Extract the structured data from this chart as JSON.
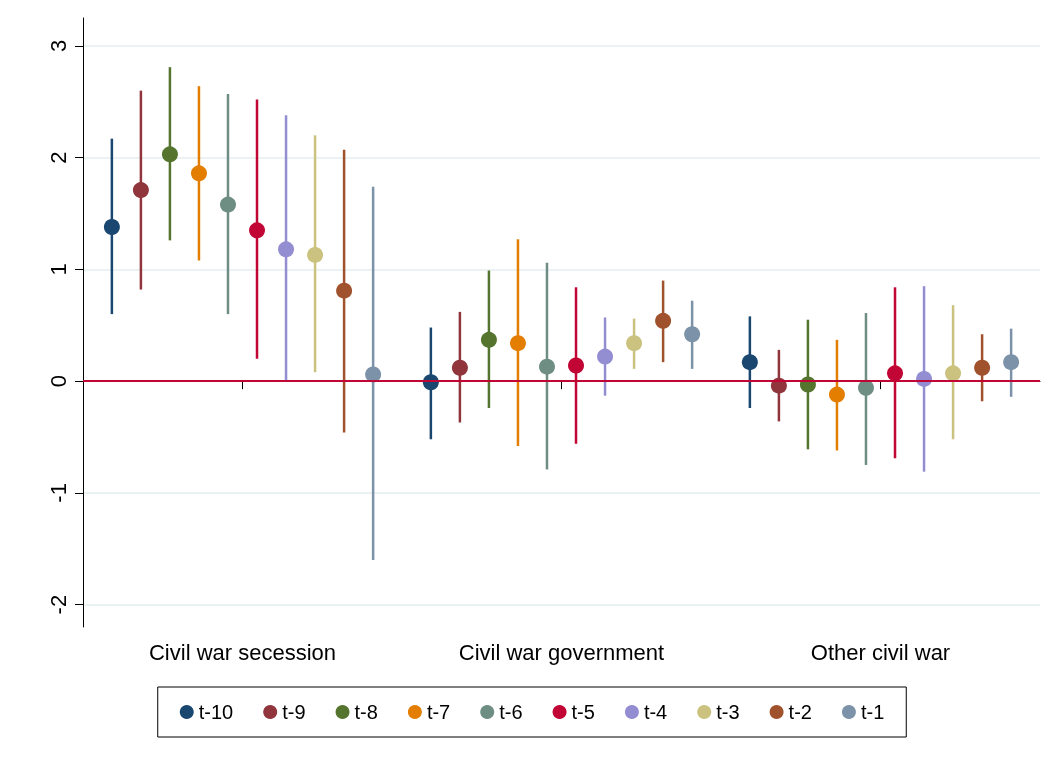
{
  "chart_data": {
    "type": "scatter",
    "categories": [
      "Civil war secession",
      "Civil war government",
      "Other civil war"
    ],
    "ylim": [
      -2.2,
      3.25
    ],
    "yticks": [
      -2,
      -1,
      0,
      1,
      2,
      3
    ],
    "grid": "y",
    "legend": "bottom",
    "marker": "circle",
    "ref_lines": [
      {
        "axis": "y",
        "value": 0,
        "color": "#c10534"
      }
    ],
    "series": [
      {
        "name": "t-10",
        "color": "#1a476f",
        "values": [
          1.38,
          -0.01,
          0.17
        ],
        "errors": [
          [
            0.6,
            2.17
          ],
          [
            -0.52,
            0.48
          ],
          [
            -0.24,
            0.58
          ]
        ]
      },
      {
        "name": "t-9",
        "color": "#90353b",
        "values": [
          1.71,
          0.12,
          -0.04
        ],
        "errors": [
          [
            0.82,
            2.6
          ],
          [
            -0.37,
            0.62
          ],
          [
            -0.36,
            0.28
          ]
        ]
      },
      {
        "name": "t-8",
        "color": "#55752f",
        "values": [
          2.03,
          0.37,
          -0.03
        ],
        "errors": [
          [
            1.26,
            2.81
          ],
          [
            -0.24,
            0.99
          ],
          [
            -0.61,
            0.55
          ]
        ]
      },
      {
        "name": "t-7",
        "color": "#e37e00",
        "values": [
          1.86,
          0.34,
          -0.12
        ],
        "errors": [
          [
            1.08,
            2.64
          ],
          [
            -0.58,
            1.27
          ],
          [
            -0.62,
            0.37
          ]
        ]
      },
      {
        "name": "t-6",
        "color": "#6e8e84",
        "values": [
          1.58,
          0.13,
          -0.06
        ],
        "errors": [
          [
            0.6,
            2.57
          ],
          [
            -0.79,
            1.06
          ],
          [
            -0.75,
            0.61
          ]
        ]
      },
      {
        "name": "t-5",
        "color": "#c10534",
        "values": [
          1.35,
          0.14,
          0.07
        ],
        "errors": [
          [
            0.2,
            2.52
          ],
          [
            -0.56,
            0.84
          ],
          [
            -0.69,
            0.84
          ]
        ]
      },
      {
        "name": "t-4",
        "color": "#938dd2",
        "values": [
          1.18,
          0.22,
          0.02
        ],
        "errors": [
          [
            0,
            2.38
          ],
          [
            -0.13,
            0.57
          ],
          [
            -0.81,
            0.85
          ]
        ]
      },
      {
        "name": "t-3",
        "color": "#cac27e",
        "values": [
          1.13,
          0.34,
          0.07
        ],
        "errors": [
          [
            0.08,
            2.2
          ],
          [
            0.11,
            0.56
          ],
          [
            -0.52,
            0.68
          ]
        ]
      },
      {
        "name": "t-2",
        "color": "#a0522d",
        "values": [
          0.81,
          0.54,
          0.12
        ],
        "errors": [
          [
            -0.46,
            2.07
          ],
          [
            0.17,
            0.9
          ],
          [
            -0.18,
            0.42
          ]
        ]
      },
      {
        "name": "t-1",
        "color": "#7b92a8",
        "values": [
          0.06,
          0.42,
          0.17
        ],
        "errors": [
          [
            -1.6,
            1.74
          ],
          [
            0.11,
            0.72
          ],
          [
            -0.14,
            0.47
          ]
        ]
      }
    ]
  }
}
